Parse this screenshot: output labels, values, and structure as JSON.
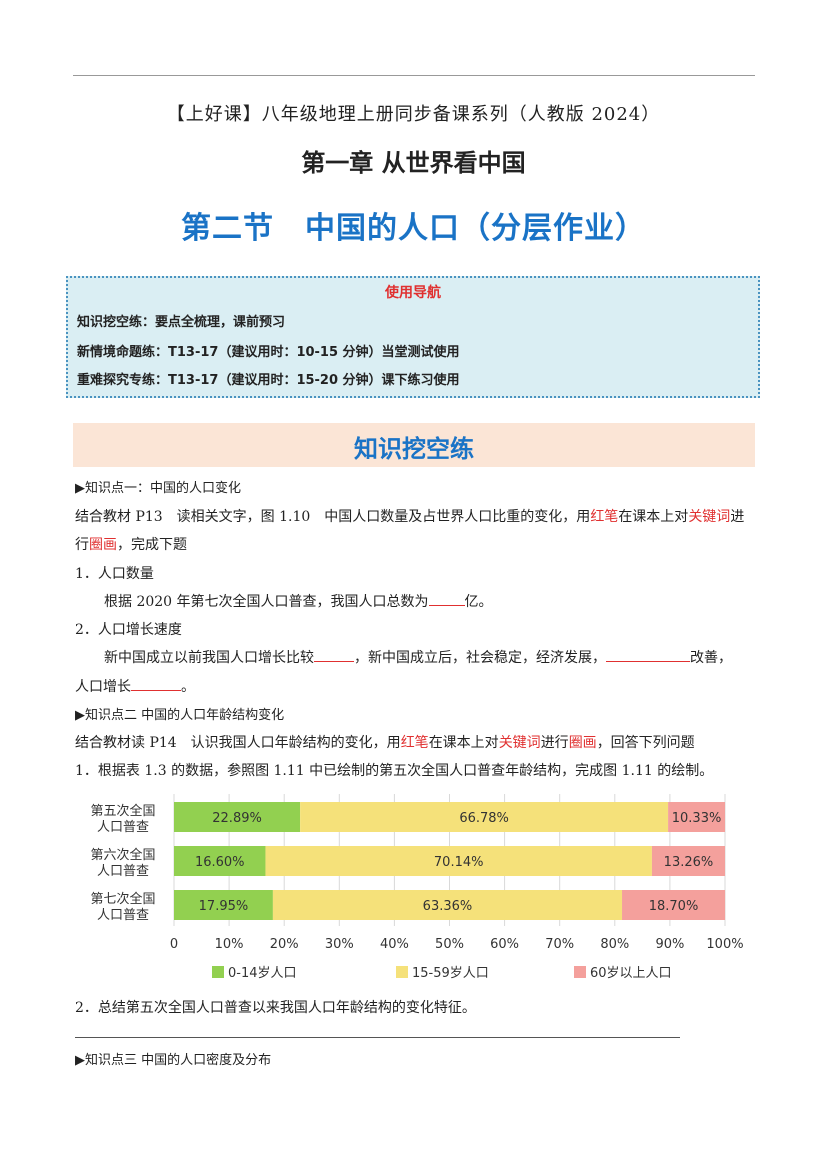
{
  "header": {
    "series_title": "【上好课】八年级地理上册同步备课系列（人教版 2024）",
    "chapter_title": "第一章 从世界看中国",
    "section_title": "第二节　中国的人口（分层作业）"
  },
  "guide": {
    "title": "使用导航",
    "lines": [
      "知识挖空练：要点全梳理，课前预习",
      "新情境命题练：T13-17（建议用时：10-15 分钟）当堂测试使用",
      "重难探究专练：T13-17（建议用时：15-20 分钟）课下练习使用"
    ]
  },
  "banner": {
    "title": "知识挖空练"
  },
  "kp1": {
    "heading": "▶知识点一：中国的人口变化",
    "intro_a": "结合教材 P13　读相关文字，图 1.10　中国人口数量及占世界人口比重的变化，用",
    "red_pen": "红笔",
    "intro_b": "在课本上对",
    "keywords": "关键词",
    "intro_c": "进",
    "intro2_a": "行",
    "circle": "圈画",
    "intro2_b": "，完成下题",
    "q1_title": "1．人口数量",
    "q1_a": "根据 2020 年第七次全国人口普查，我国人口总数为",
    "q1_b": "亿。",
    "q2_title": "2．人口增长速度",
    "q2_a": "新中国成立以前我国人口增长比较",
    "q2_b": "，新中国成立后，社会稳定，经济发展，",
    "q2_c": "改善，",
    "q2_d": "人口增长",
    "q2_e": "。"
  },
  "kp2": {
    "heading": "▶知识点二 中国的人口年龄结构变化",
    "intro_a": "结合教材读 P14　认识我国人口年龄结构的变化，用",
    "red_pen": "红笔",
    "intro_b": "在课本上对",
    "keywords": "关键词",
    "intro_c": "进行",
    "circle": "圈画",
    "intro_d": "，回答下列问题",
    "q1": "1．根据表 1.3 的数据，参照图 1.11 中已绘制的第五次全国人口普查年龄结构，完成图 1.11 的绘制。",
    "q2": "2．总结第五次全国人口普查以来我国人口年龄结构的变化特征。"
  },
  "kp3": {
    "heading": "▶知识点三 中国的人口密度及分布"
  },
  "chart_data": {
    "type": "bar",
    "stacked": true,
    "orientation": "horizontal",
    "categories": [
      [
        "第五次全国",
        "人口普查"
      ],
      [
        "第六次全国",
        "人口普查"
      ],
      [
        "第七次全国",
        "人口普查"
      ]
    ],
    "series": [
      {
        "name": "0-14岁人口",
        "values": [
          22.89,
          16.6,
          17.95
        ],
        "labels": [
          "22.89%",
          "16.60%",
          "17.95%"
        ],
        "color": "#92d050"
      },
      {
        "name": "15-59岁人口",
        "values": [
          66.78,
          70.14,
          63.36
        ],
        "labels": [
          "66.78%",
          "70.14%",
          "63.36%"
        ],
        "color": "#f5e17a"
      },
      {
        "name": "60岁以上人口",
        "values": [
          10.33,
          13.26,
          18.7
        ],
        "labels": [
          "10.33%",
          "13.26%",
          "18.70%"
        ],
        "color": "#f4a09c"
      }
    ],
    "xlim": [
      0,
      100
    ],
    "x_ticks": [
      "0",
      "10%",
      "20%",
      "30%",
      "40%",
      "50%",
      "60%",
      "70%",
      "80%",
      "90%",
      "100%"
    ],
    "grid": true,
    "legend": "bottom"
  }
}
